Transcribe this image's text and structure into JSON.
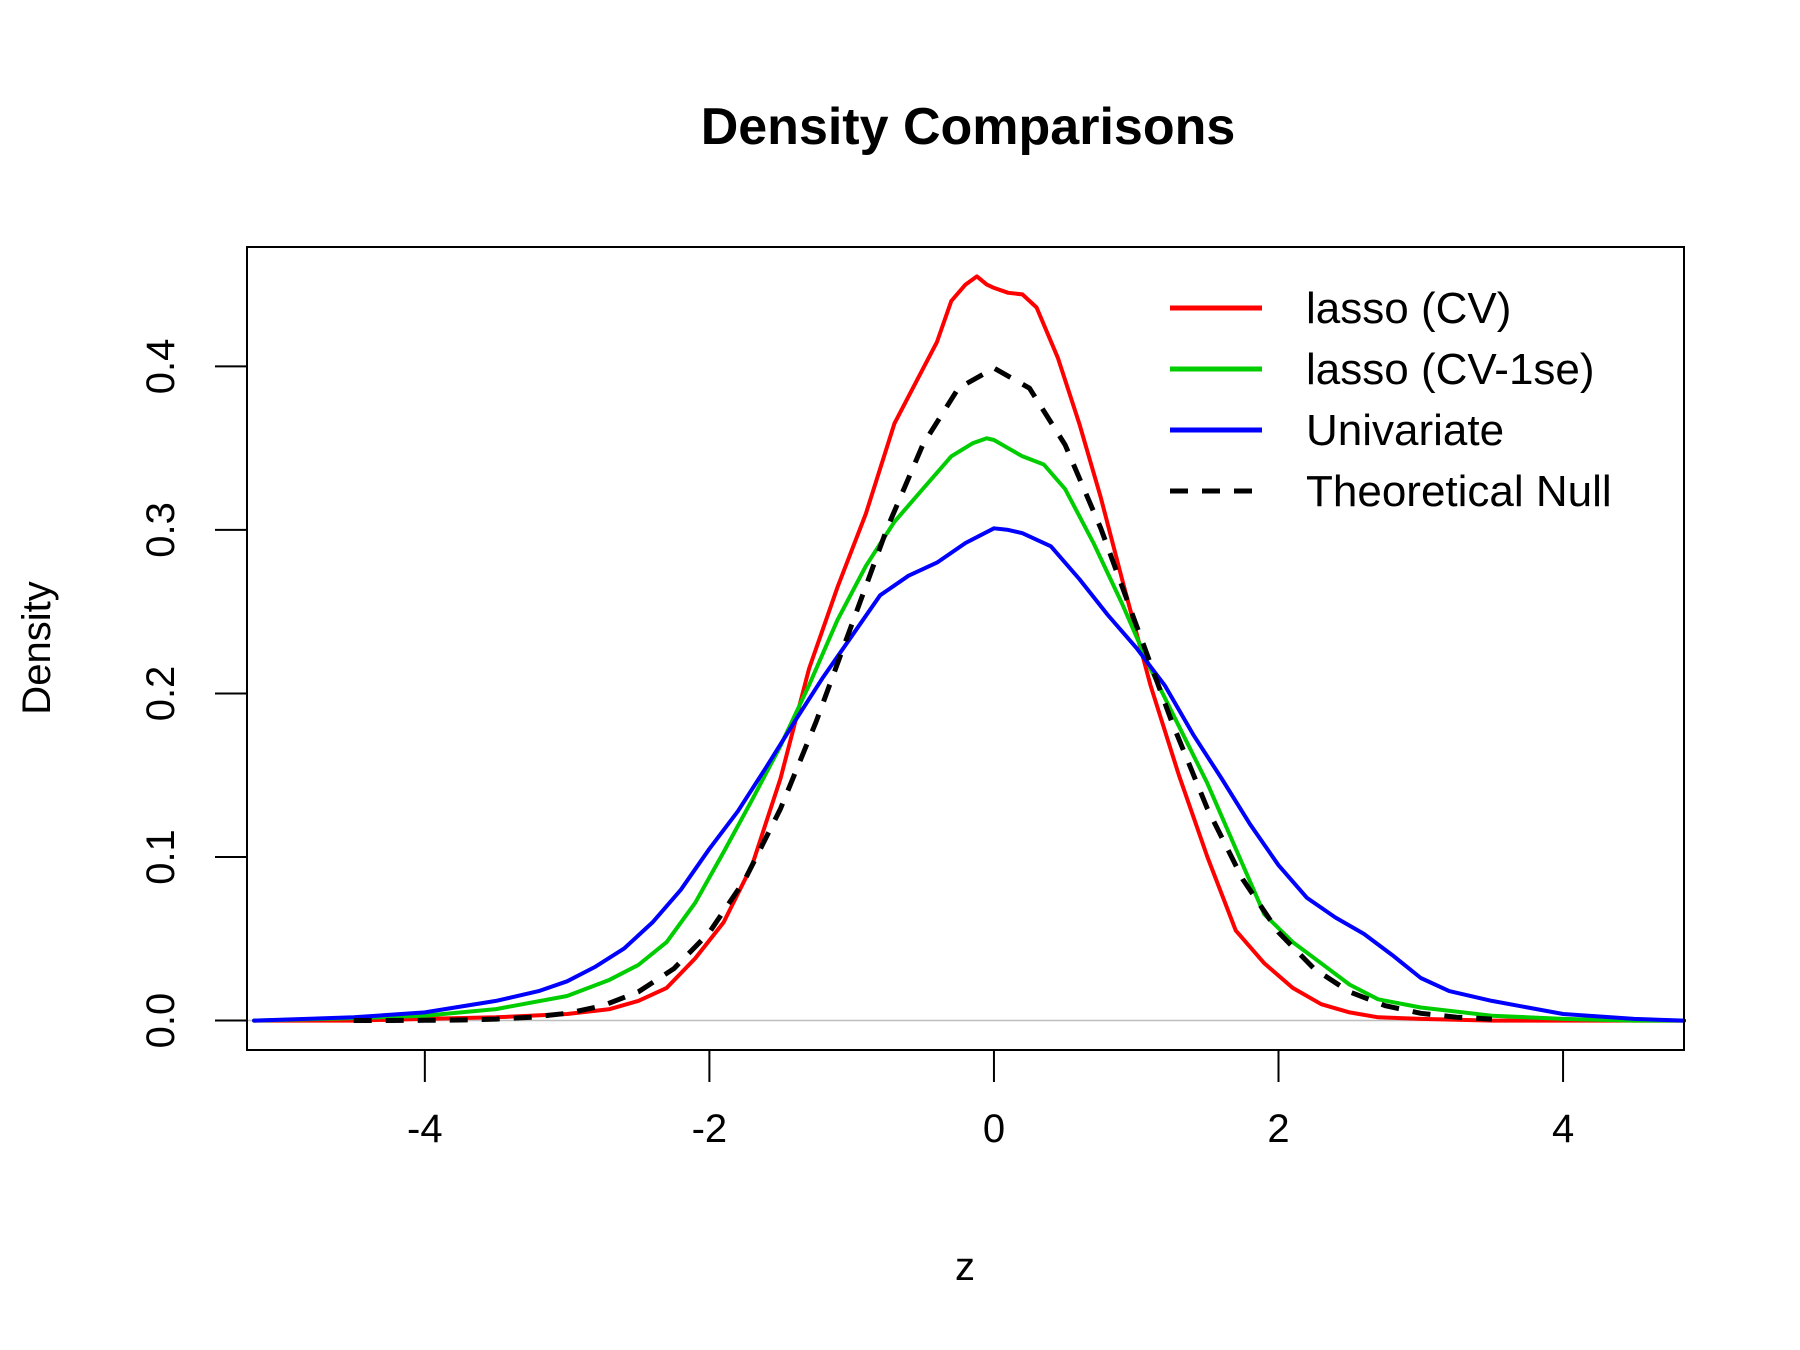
{
  "chart_data": {
    "type": "line",
    "title": "Density Comparisons",
    "xlabel": "z",
    "ylabel": "Density",
    "xlim": [
      -5.25,
      4.85
    ],
    "ylim": [
      -0.018,
      0.473
    ],
    "x_ticks": [
      -4,
      -2,
      0,
      2,
      4
    ],
    "x_tick_labels": [
      "-4",
      "-2",
      "0",
      "2",
      "4"
    ],
    "y_ticks": [
      0.0,
      0.1,
      0.2,
      0.3,
      0.4
    ],
    "y_tick_labels": [
      "0.0",
      "0.1",
      "0.2",
      "0.3",
      "0.4"
    ],
    "grid": false,
    "baseline": 0,
    "legend_position": "top-right",
    "series": [
      {
        "name": "lasso (CV)",
        "color": "#ff0000",
        "dash": "solid",
        "x": [
          -5.2,
          -4.5,
          -4.0,
          -3.5,
          -3.0,
          -2.7,
          -2.5,
          -2.3,
          -2.1,
          -1.9,
          -1.7,
          -1.5,
          -1.3,
          -1.1,
          -0.9,
          -0.7,
          -0.55,
          -0.4,
          -0.3,
          -0.2,
          -0.12,
          -0.05,
          0.0,
          0.1,
          0.2,
          0.3,
          0.45,
          0.6,
          0.75,
          0.9,
          1.1,
          1.3,
          1.5,
          1.7,
          1.9,
          2.1,
          2.3,
          2.5,
          2.7,
          3.0,
          3.5,
          4.0,
          4.5,
          4.85
        ],
        "y": [
          0.0,
          0.0,
          0.001,
          0.002,
          0.004,
          0.007,
          0.012,
          0.02,
          0.038,
          0.06,
          0.095,
          0.148,
          0.215,
          0.265,
          0.31,
          0.365,
          0.39,
          0.415,
          0.44,
          0.45,
          0.455,
          0.45,
          0.448,
          0.445,
          0.444,
          0.436,
          0.405,
          0.365,
          0.32,
          0.27,
          0.205,
          0.15,
          0.1,
          0.055,
          0.035,
          0.02,
          0.01,
          0.005,
          0.002,
          0.001,
          0.0,
          0.0,
          0.0,
          0.0
        ]
      },
      {
        "name": "lasso (CV-1se)",
        "color": "#00cd00",
        "dash": "solid",
        "x": [
          -5.2,
          -4.5,
          -4.0,
          -3.5,
          -3.0,
          -2.7,
          -2.5,
          -2.3,
          -2.1,
          -1.9,
          -1.7,
          -1.5,
          -1.3,
          -1.1,
          -0.9,
          -0.7,
          -0.5,
          -0.3,
          -0.15,
          -0.05,
          0.0,
          0.1,
          0.2,
          0.35,
          0.5,
          0.7,
          0.9,
          1.1,
          1.3,
          1.5,
          1.7,
          1.9,
          2.1,
          2.3,
          2.5,
          2.7,
          3.0,
          3.5,
          4.0,
          4.5,
          4.85
        ],
        "y": [
          0.0,
          0.0015,
          0.003,
          0.007,
          0.015,
          0.025,
          0.034,
          0.048,
          0.072,
          0.103,
          0.135,
          0.168,
          0.205,
          0.245,
          0.278,
          0.305,
          0.325,
          0.345,
          0.353,
          0.356,
          0.355,
          0.35,
          0.345,
          0.34,
          0.325,
          0.292,
          0.255,
          0.215,
          0.18,
          0.145,
          0.105,
          0.065,
          0.048,
          0.035,
          0.022,
          0.013,
          0.008,
          0.003,
          0.001,
          0.0,
          0.0
        ]
      },
      {
        "name": "Univariate",
        "color": "#0000ff",
        "dash": "solid",
        "x": [
          -5.2,
          -4.5,
          -4.0,
          -3.5,
          -3.2,
          -3.0,
          -2.8,
          -2.6,
          -2.4,
          -2.2,
          -2.0,
          -1.8,
          -1.6,
          -1.4,
          -1.2,
          -1.0,
          -0.8,
          -0.6,
          -0.4,
          -0.2,
          0.0,
          0.1,
          0.2,
          0.4,
          0.6,
          0.8,
          1.0,
          1.2,
          1.4,
          1.6,
          1.8,
          2.0,
          2.2,
          2.4,
          2.6,
          2.8,
          3.0,
          3.2,
          3.5,
          4.0,
          4.5,
          4.85
        ],
        "y": [
          0.0,
          0.002,
          0.005,
          0.012,
          0.018,
          0.024,
          0.033,
          0.044,
          0.06,
          0.08,
          0.105,
          0.128,
          0.155,
          0.183,
          0.21,
          0.235,
          0.26,
          0.272,
          0.28,
          0.292,
          0.301,
          0.3,
          0.298,
          0.29,
          0.27,
          0.248,
          0.228,
          0.205,
          0.175,
          0.148,
          0.12,
          0.095,
          0.075,
          0.063,
          0.053,
          0.04,
          0.026,
          0.018,
          0.012,
          0.004,
          0.001,
          0.0
        ]
      },
      {
        "name": "Theoretical Null",
        "color": "#000000",
        "dash": "dashed",
        "x": [
          -4.5,
          -4.25,
          -4.0,
          -3.75,
          -3.5,
          -3.25,
          -3.0,
          -2.75,
          -2.5,
          -2.25,
          -2.0,
          -1.75,
          -1.5,
          -1.25,
          -1.0,
          -0.75,
          -0.5,
          -0.25,
          0.0,
          0.25,
          0.5,
          0.75,
          1.0,
          1.25,
          1.5,
          1.75,
          2.0,
          2.25,
          2.5,
          2.75,
          3.0,
          3.25,
          3.5
        ],
        "y": [
          2e-05,
          5e-05,
          0.00013,
          0.00035,
          0.00087,
          0.00203,
          0.00443,
          0.00909,
          0.01753,
          0.03174,
          0.05399,
          0.08628,
          0.12952,
          0.18265,
          0.24197,
          0.30114,
          0.35207,
          0.38667,
          0.39894,
          0.38667,
          0.35207,
          0.30114,
          0.24197,
          0.18265,
          0.12952,
          0.08628,
          0.05399,
          0.03174,
          0.01753,
          0.00909,
          0.00443,
          0.00203,
          0.00087
        ]
      }
    ]
  }
}
